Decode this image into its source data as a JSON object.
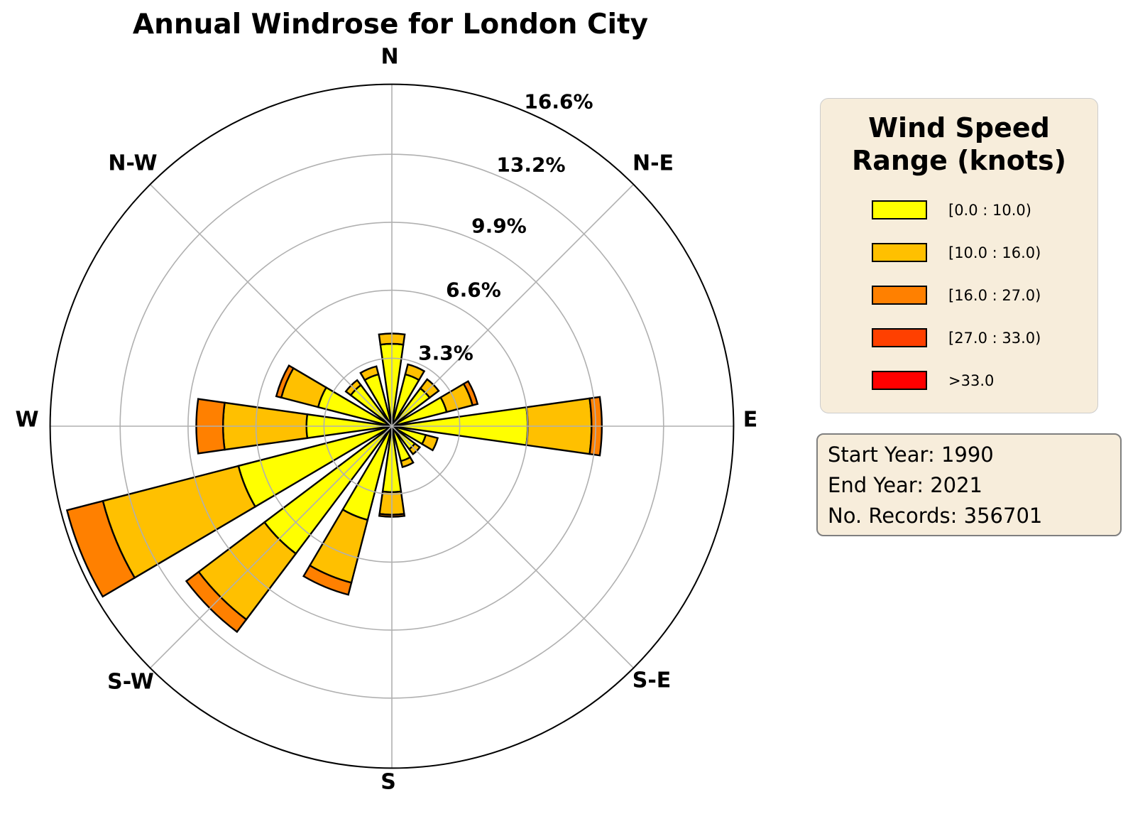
{
  "title": "Annual Windrose for London City",
  "chart_data": {
    "type": "bar",
    "subtype": "windrose_polar_stacked",
    "units": "% of records",
    "title": "Annual Windrose for London City",
    "categories": [
      "N",
      "NNE",
      "NE",
      "ENE",
      "E",
      "ESE",
      "SE",
      "SSE",
      "S",
      "SSW",
      "SW",
      "WSW",
      "W",
      "WNW",
      "NW",
      "NNW"
    ],
    "series": [
      {
        "name": "[0.0 : 10.0)",
        "color": "#FFFF00",
        "values": [
          4.0,
          2.6,
          2.3,
          2.75,
          6.6,
          1.7,
          1.4,
          1.75,
          3.2,
          4.7,
          7.75,
          7.7,
          4.15,
          3.7,
          2.5,
          2.6
        ]
      },
      {
        "name": "[10.0 : 16.0)",
        "color": "#FFC000",
        "values": [
          0.5,
          0.5,
          0.55,
          1.3,
          3.1,
          0.6,
          0.3,
          0.3,
          1.1,
          3.15,
          4.0,
          6.8,
          4.05,
          1.85,
          0.3,
          0.4
        ]
      },
      {
        "name": "[16.0 : 27.0)",
        "color": "#FF8000",
        "values": [
          0,
          0,
          0,
          0.25,
          0.5,
          0,
          0,
          0,
          0.1,
          0.6,
          0.75,
          1.8,
          1.3,
          0.25,
          0,
          0
        ]
      },
      {
        "name": "[27.0 : 33.0)",
        "color": "#FF4000",
        "values": [
          0,
          0,
          0,
          0,
          0,
          0,
          0,
          0,
          0,
          0,
          0,
          0,
          0,
          0,
          0,
          0
        ]
      },
      {
        "name": ">33.0",
        "color": "#FF0000",
        "values": [
          0,
          0,
          0,
          0,
          0,
          0,
          0,
          0,
          0,
          0,
          0,
          0,
          0,
          0,
          0,
          0
        ]
      }
    ],
    "totals_percent": [
      4.5,
      3.1,
      2.85,
      4.3,
      10.2,
      2.3,
      1.7,
      2.05,
      4.4,
      8.45,
      12.5,
      16.3,
      9.5,
      5.8,
      2.8,
      3.0
    ],
    "r_axis": {
      "tick_labels": [
        "3.3%",
        "6.6%",
        "9.9%",
        "13.2%",
        "16.6%"
      ],
      "tick_values": [
        3.3,
        6.6,
        9.9,
        13.2,
        16.6
      ],
      "max": 16.6
    },
    "compass_labels": [
      "N",
      "N-E",
      "E",
      "S-E",
      "S",
      "S-W",
      "W",
      "N-W"
    ],
    "grid": {
      "ring_color": "#B0B0B0",
      "spine_color": "#000000",
      "petal_edge_color": "#000000",
      "grid_on": true
    },
    "legend_position": "right"
  },
  "legend": {
    "title": "Wind Speed Range (knots)",
    "title_lines": [
      "Wind Speed",
      "Range (knots)"
    ],
    "items": [
      {
        "label": "[0.0 : 10.0)",
        "color": "#FFFF00"
      },
      {
        "label": "[10.0 : 16.0)",
        "color": "#FFC000"
      },
      {
        "label": "[16.0 : 27.0)",
        "color": "#FF8000"
      },
      {
        "label": "[27.0 : 33.0)",
        "color": "#FF4000"
      },
      {
        "label": ">33.0",
        "color": "#FF0000"
      }
    ],
    "background": "#F7EDDB"
  },
  "info_box": {
    "lines": [
      "Start Year: 1990",
      "End Year: 2021",
      "No. Records: 356701"
    ],
    "background": "#F7EDDB"
  }
}
